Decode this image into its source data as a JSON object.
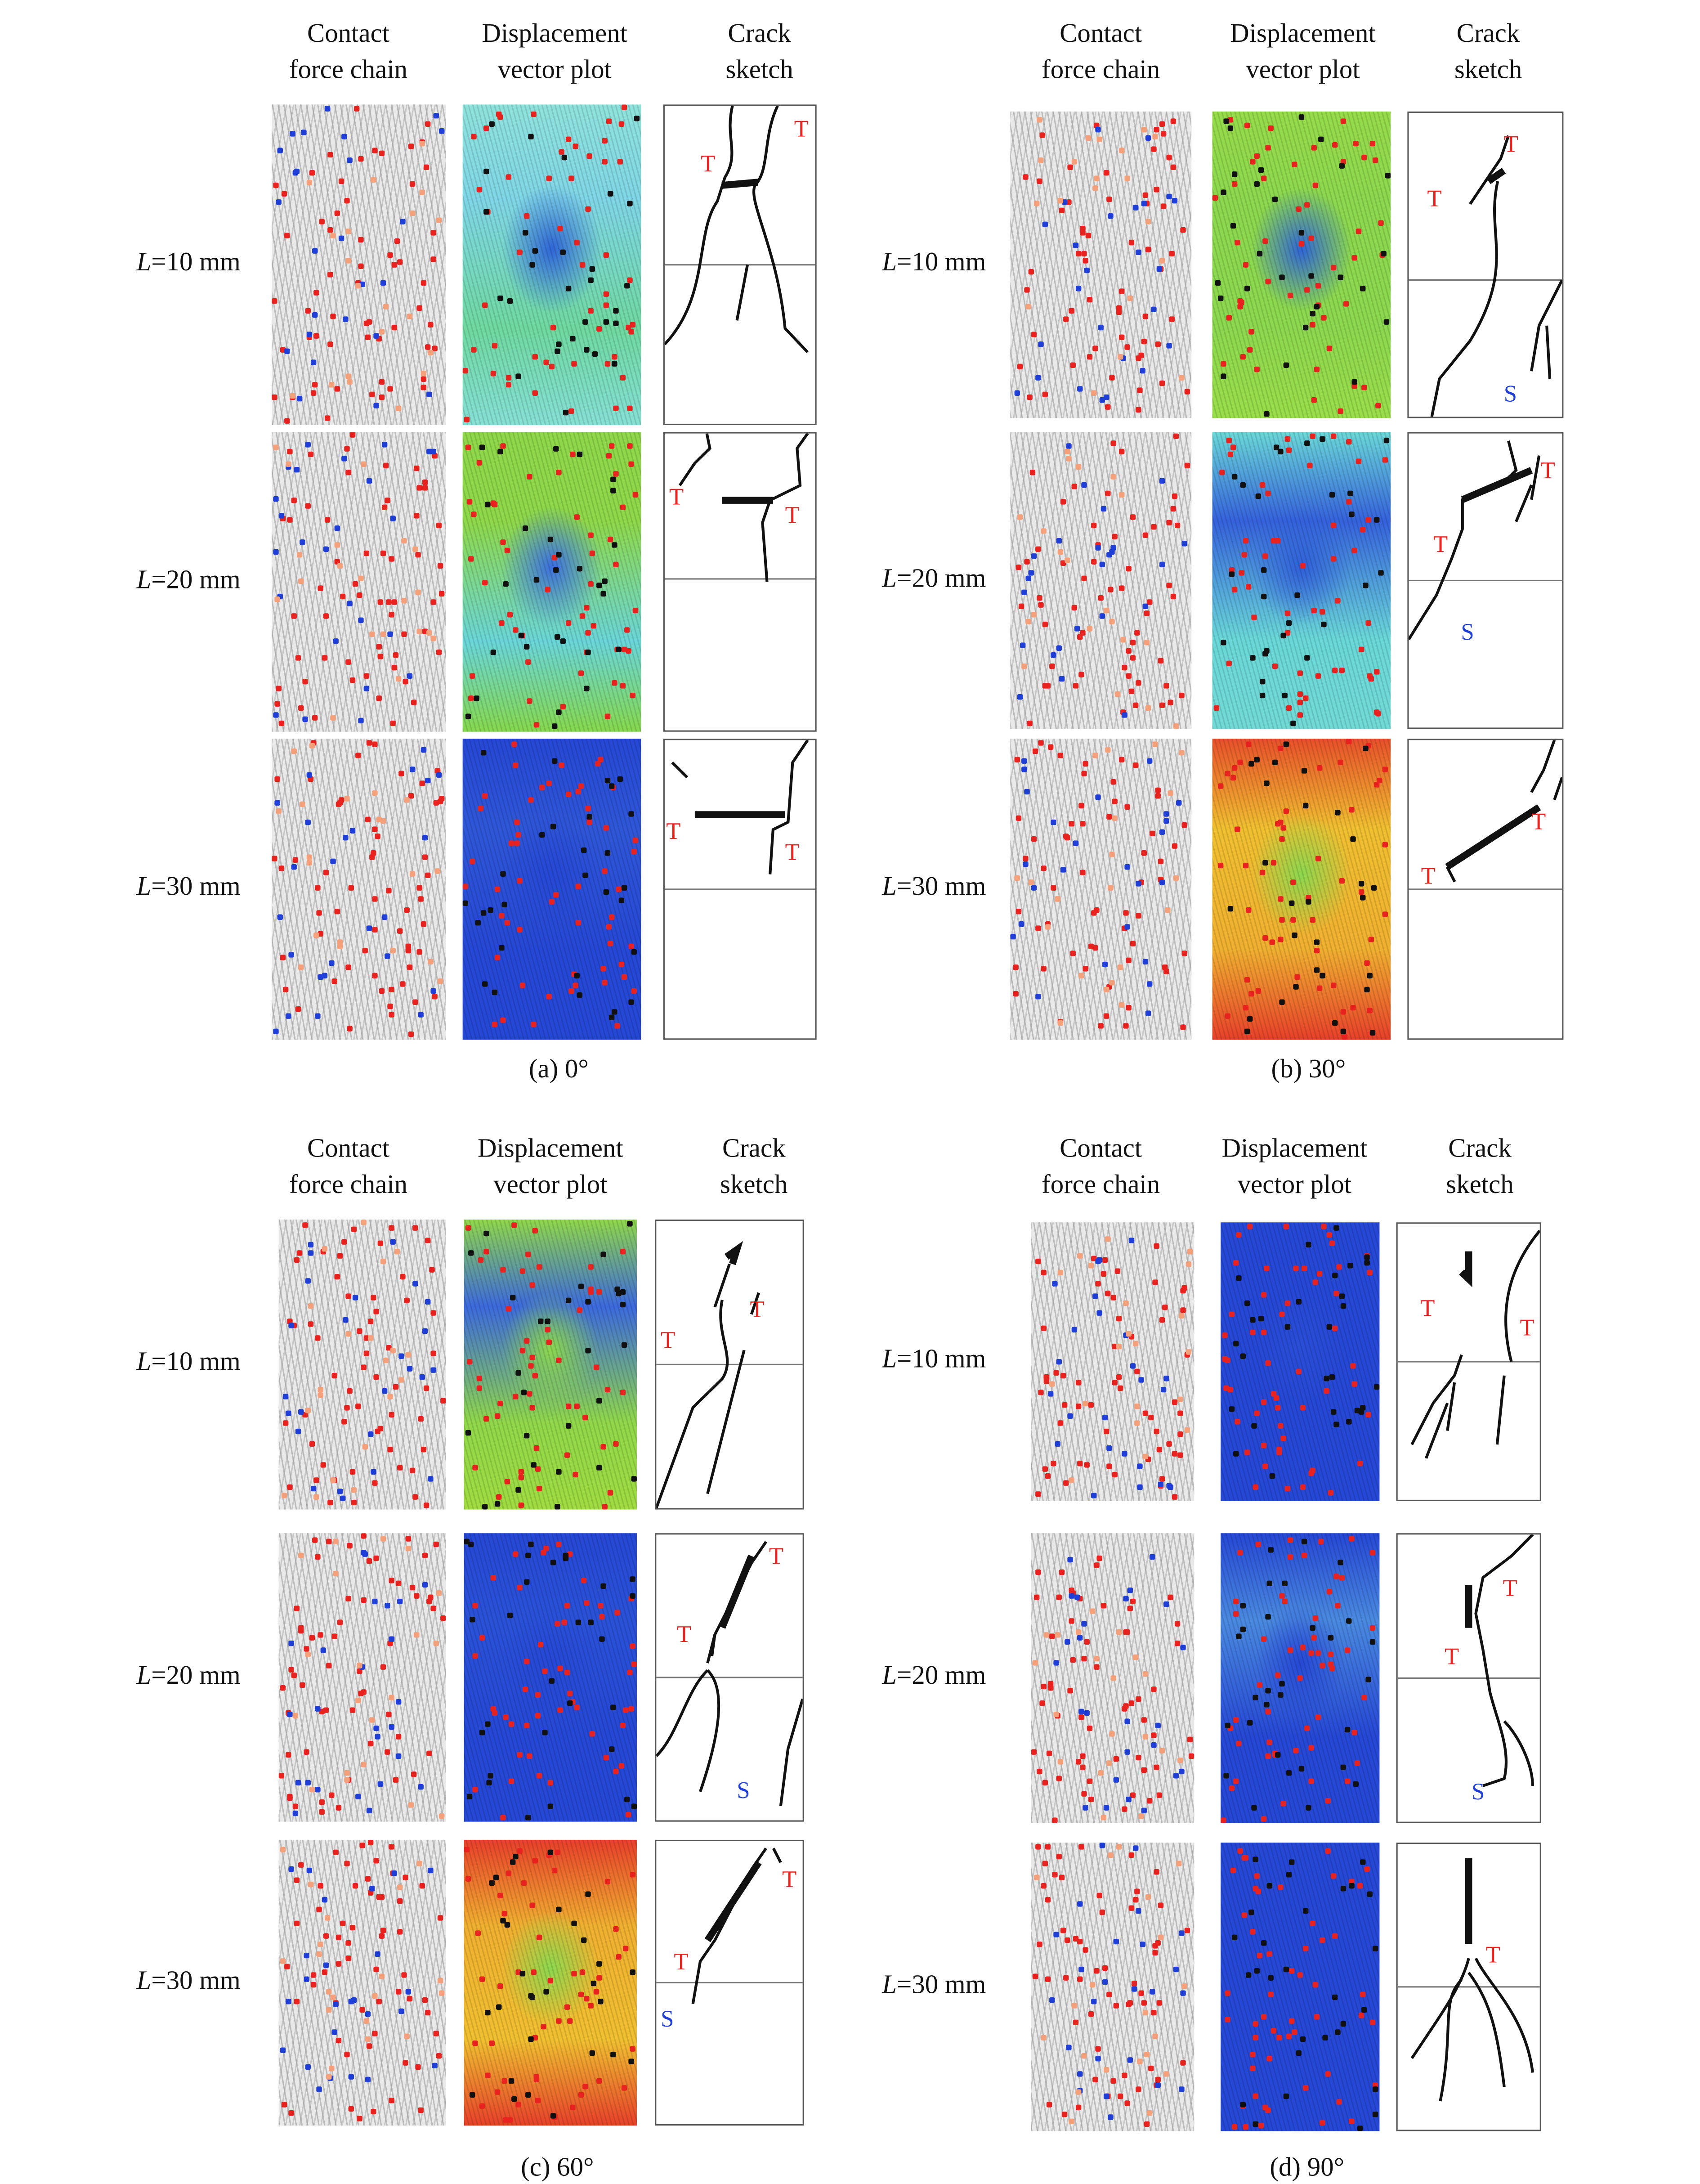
{
  "column_headers": [
    "Contact\nforce chain",
    "Displacement\nvector plot",
    "Crack\nsketch"
  ],
  "row_labels": [
    {
      "var": "L",
      "text": "=10 mm"
    },
    {
      "var": "L",
      "text": "=20 mm"
    },
    {
      "var": "L",
      "text": "=30 mm"
    }
  ],
  "colors": {
    "tension_crack": "#e8231f",
    "shear_crack": "#1f3fd6",
    "chain_light": "#f4a07a"
  },
  "panels": [
    {
      "caption": "(a) 0°",
      "rows": [
        {
          "displacement_gradient": [
            "#8fe3dc",
            "#7fd6e6",
            "#2f66d8",
            "#6fd9a0",
            "#86e0d6"
          ],
          "labels": [
            "T",
            "T"
          ]
        },
        {
          "displacement_gradient": [
            "#8ed84a",
            "#8ed84a",
            "#3b6fe0",
            "#6ad6d9",
            "#86d84c"
          ],
          "labels": [
            "T",
            "T"
          ]
        },
        {
          "displacement_gradient": [
            "#2648d6",
            "#2f57d8",
            "#2648d6",
            "#2648d6",
            "#2648d6"
          ],
          "labels": [
            "T",
            "T"
          ]
        }
      ]
    },
    {
      "caption": "(b) 30°",
      "rows": [
        {
          "displacement_gradient": [
            "#96dc4a",
            "#8cd84e",
            "#2f66d8",
            "#8cd84e",
            "#9ade4a"
          ],
          "labels": [
            "T",
            "T",
            "S"
          ]
        },
        {
          "displacement_gradient": [
            "#6ad8d8",
            "#3562dd",
            "#3060da",
            "#6ad8d8",
            "#72dad6"
          ],
          "labels": [
            "T",
            "T",
            "S"
          ]
        },
        {
          "displacement_gradient": [
            "#e8502a",
            "#f0c030",
            "#8cd84e",
            "#f0b030",
            "#e8402a"
          ],
          "labels": [
            "T",
            "T"
          ]
        }
      ]
    },
    {
      "caption": "(c) 60°",
      "rows": [
        {
          "displacement_gradient": [
            "#90d84a",
            "#3c6ade",
            "#8cd84e",
            "#90d84a",
            "#a0dc40"
          ],
          "labels": [
            "T",
            "T"
          ]
        },
        {
          "displacement_gradient": [
            "#2648d6",
            "#2a52d8",
            "#2648d6",
            "#2648d6",
            "#2648d6"
          ],
          "labels": [
            "T",
            "T",
            "S"
          ]
        },
        {
          "displacement_gradient": [
            "#e8402a",
            "#f0b030",
            "#8cd84e",
            "#f0c030",
            "#e8402a"
          ],
          "labels": [
            "T",
            "T",
            "S"
          ]
        }
      ]
    },
    {
      "caption": "(d) 90°",
      "rows": [
        {
          "displacement_gradient": [
            "#2648d6",
            "#2648d6",
            "#2a4ed8",
            "#2648d6",
            "#2648d6"
          ],
          "labels": [
            "T",
            "T"
          ]
        },
        {
          "displacement_gradient": [
            "#2648d6",
            "#4a8ae0",
            "#2648d6",
            "#2648d6",
            "#2648d6"
          ],
          "labels": [
            "T",
            "T",
            "S"
          ]
        },
        {
          "displacement_gradient": [
            "#2648d6",
            "#2648d6",
            "#2648d6",
            "#2648d6",
            "#2648d6"
          ],
          "labels": [
            "T"
          ]
        }
      ]
    }
  ]
}
